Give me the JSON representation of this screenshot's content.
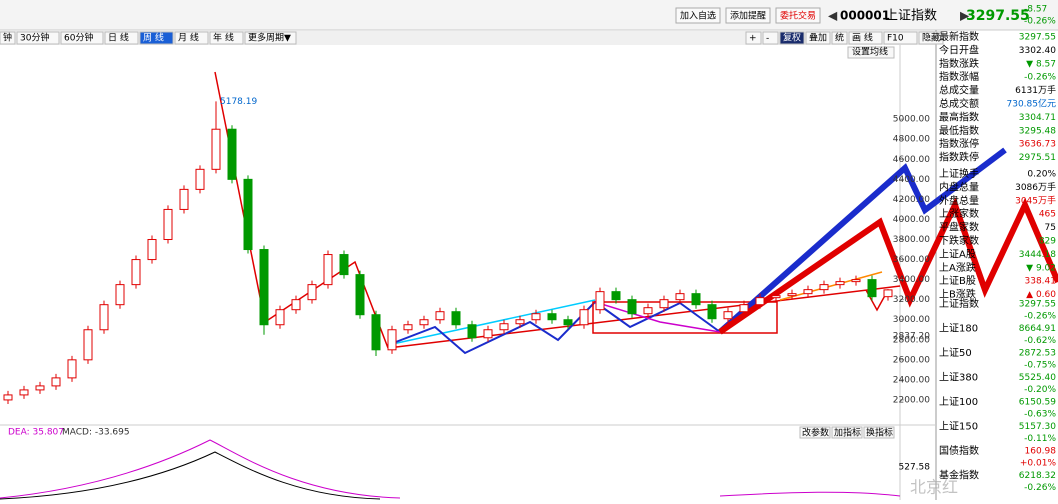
{
  "toolbar": {
    "buttons": [
      "加入自选",
      "添加提醒",
      "委托交易"
    ],
    "code": "000001",
    "name": "上证指数",
    "price": "3297.55",
    "change": "-8.57",
    "change_pct": "-0.26%",
    "periods": [
      "钟",
      "30分钟",
      "60分钟",
      "日 线",
      "周 线",
      "月 线",
      "年 线",
      "更多周期▼"
    ],
    "active_period": 4,
    "tools": [
      "+",
      "-",
      "复权",
      "叠加",
      "统",
      "画 线",
      "F10",
      "隐藏"
    ],
    "ma_button": "设置均线"
  },
  "quote_rows": [
    {
      "label": "最新指数",
      "value": "3297.55",
      "color": "#009900"
    },
    {
      "label": "今日开盘",
      "value": "3302.40",
      "color": "#000000"
    },
    {
      "label": "指数涨跌",
      "value": "▼ 8.57",
      "color": "#009900"
    },
    {
      "label": "指数涨幅",
      "value": "-0.26%",
      "color": "#009900"
    },
    {
      "label": "总成交量",
      "value": "6131万手",
      "color": "#000000"
    },
    {
      "label": "总成交额",
      "value": "730.85亿元",
      "color": "#0066cc"
    },
    {
      "label": "最高指数",
      "value": "3304.71",
      "color": "#009900"
    },
    {
      "label": "最低指数",
      "value": "3295.48",
      "color": "#009900"
    },
    {
      "label": "指数涨停",
      "value": "3636.73",
      "color": "#e00000"
    },
    {
      "label": "指数跌停",
      "value": "2975.51",
      "color": "#009900"
    },
    {
      "label": "上证换手",
      "value": "0.20%",
      "color": "#000000"
    },
    {
      "label": "内盘总量",
      "value": "3086万手",
      "color": "#000000"
    },
    {
      "label": "外盘总量",
      "value": "3045万手",
      "color": "#e00000"
    },
    {
      "label": "上涨家数",
      "value": "465",
      "color": "#e00000"
    },
    {
      "label": "平盘家数",
      "value": "75",
      "color": "#000000"
    },
    {
      "label": "下跌家数",
      "value": "829",
      "color": "#009900"
    },
    {
      "label": "上证A股",
      "value": "3444.18",
      "color": "#009900"
    },
    {
      "label": "上A涨跌",
      "value": "▼ 9.02",
      "color": "#009900"
    },
    {
      "label": "上证B股",
      "value": "338.41",
      "color": "#e00000"
    },
    {
      "label": "上B涨跌",
      "value": "▲ 0.60",
      "color": "#e00000"
    }
  ],
  "index_rows": [
    {
      "name": "上证指数",
      "value": "3297.55",
      "change": "-0.26%",
      "color": "#009900"
    },
    {
      "name": "上证180",
      "value": "8664.91",
      "change": "-0.62%",
      "color": "#009900"
    },
    {
      "name": "上证50",
      "value": "2872.53",
      "change": "-0.75%",
      "color": "#009900"
    },
    {
      "name": "上证380",
      "value": "5525.40",
      "change": "-0.20%",
      "color": "#009900"
    },
    {
      "name": "上证100",
      "value": "6150.59",
      "change": "-0.63%",
      "color": "#009900"
    },
    {
      "name": "上证150",
      "value": "5157.30",
      "change": "-0.11%",
      "color": "#009900"
    },
    {
      "name": "国债指数",
      "value": "160.98",
      "change": "+0.01%",
      "color": "#e00000"
    },
    {
      "name": "基金指数",
      "value": "6218.32",
      "change": "-0.26%",
      "color": "#009900"
    }
  ],
  "macd_panel": {
    "dea": "DEA: 35.807",
    "macd": "MACD: -33.695",
    "buttons": [
      "改参数",
      "加指标",
      "换指标"
    ],
    "axis_label": "527.58"
  },
  "watermark": "北京红",
  "chart_data": {
    "type": "candlestick",
    "up_color": "#e00000",
    "down_color": "#009900",
    "grid": false,
    "ylim": [
      1950,
      5740
    ],
    "yticks": [
      {
        "value": 2200,
        "label": "2200.00"
      },
      {
        "value": 2400,
        "label": "2400.00"
      },
      {
        "value": 2600,
        "label": "2600.00"
      },
      {
        "value": 2800,
        "label": "2800.00"
      },
      {
        "value": 2837.2,
        "label": "2837.20"
      },
      {
        "value": 3000,
        "label": "3000.00"
      },
      {
        "value": 3200,
        "label": "3200.00"
      },
      {
        "value": 3400,
        "label": "3400.00"
      },
      {
        "value": 3600,
        "label": "3600.00"
      },
      {
        "value": 3800,
        "label": "3800.00"
      },
      {
        "value": 4000,
        "label": "4000.00"
      },
      {
        "value": 4200,
        "label": "4200.00"
      },
      {
        "value": 4400,
        "label": "4400.00"
      },
      {
        "value": 4600,
        "label": "4600.00"
      },
      {
        "value": 4800,
        "label": "4800.00"
      },
      {
        "value": 5000,
        "label": "5000.00"
      }
    ],
    "open": [
      2200,
      2250,
      2300,
      2340,
      2420,
      2600,
      2900,
      3150,
      3350,
      3600,
      3800,
      4100,
      4300,
      4500,
      4900,
      4400,
      3700,
      2950,
      3100,
      3200,
      3350,
      3650,
      3450,
      3050,
      2700,
      2900,
      2950,
      3000,
      3080,
      2950,
      2820,
      2900,
      2960,
      3000,
      3060,
      3000,
      2950,
      3100,
      3280,
      3200,
      3060,
      3120,
      3200,
      3260,
      3150,
      3010,
      3080,
      3150,
      3220,
      3240,
      3260,
      3300,
      3350,
      3380,
      3400,
      3230
    ],
    "high": [
      2290,
      2340,
      2380,
      2460,
      2640,
      2940,
      3190,
      3390,
      3640,
      3840,
      4140,
      4340,
      4540,
      5178.19,
      4940,
      4440,
      3740,
      3140,
      3240,
      3390,
      3690,
      3690,
      3490,
      3090,
      2940,
      2990,
      3040,
      3120,
      3120,
      2990,
      2940,
      3000,
      3040,
      3100,
      3100,
      3040,
      3140,
      3320,
      3320,
      3240,
      3160,
      3240,
      3300,
      3300,
      3190,
      3120,
      3190,
      3260,
      3280,
      3300,
      3340,
      3390,
      3420,
      3440,
      3440,
      3304.71
    ],
    "low": [
      2160,
      2210,
      2260,
      2300,
      2380,
      2560,
      2860,
      3110,
      3310,
      3560,
      3760,
      4060,
      4260,
      4460,
      4360,
      3660,
      2850,
      2910,
      3060,
      3160,
      3310,
      3410,
      3010,
      2638.3,
      2660,
      2860,
      2910,
      2960,
      2910,
      2780,
      2780,
      2860,
      2920,
      2960,
      2960,
      2910,
      2910,
      3060,
      3160,
      3020,
      3020,
      3080,
      3160,
      3110,
      2970,
      2970,
      3040,
      3110,
      3180,
      3200,
      3220,
      3260,
      3310,
      3340,
      3190,
      3190
    ],
    "close": [
      2250,
      2300,
      2340,
      2420,
      2600,
      2900,
      3150,
      3350,
      3600,
      3800,
      4100,
      4300,
      4500,
      4900,
      4400,
      3700,
      2950,
      3100,
      3200,
      3350,
      3650,
      3450,
      3050,
      2700,
      2900,
      2950,
      3000,
      3080,
      2950,
      2820,
      2900,
      2960,
      3000,
      3060,
      3000,
      2950,
      3100,
      3280,
      3200,
      3060,
      3120,
      3200,
      3260,
      3150,
      3010,
      3080,
      3150,
      3220,
      3240,
      3260,
      3300,
      3350,
      3380,
      3400,
      3230,
      3297.55
    ]
  }
}
